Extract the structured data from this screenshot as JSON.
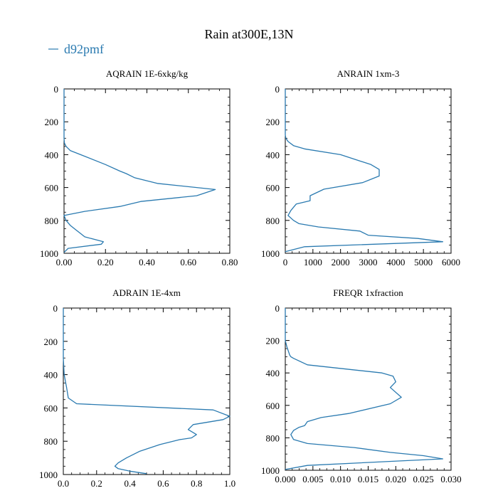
{
  "title": "Rain at300E,13N",
  "legend": {
    "label": "d92pmf",
    "color": "#2a7ab0"
  },
  "chart_data": [
    {
      "type": "line",
      "title": "AQRAIN  1E-6xkg/kg",
      "xlim": [
        0,
        0.8
      ],
      "ylim": [
        1000,
        0
      ],
      "xticks": [
        0,
        0.2,
        0.4,
        0.6,
        0.8
      ],
      "xtick_labels": [
        "0.00",
        "0.20",
        "0.40",
        "0.60",
        "0.80"
      ],
      "yticks": [
        0,
        200,
        400,
        600,
        800,
        1000
      ],
      "ytick_labels": [
        "0",
        "200",
        "400",
        "600",
        "800",
        "1000"
      ],
      "series": [
        {
          "name": "d92pmf",
          "x": [
            0,
            0,
            0,
            0,
            0,
            0.002,
            0.01,
            0.03,
            0.08,
            0.2,
            0.27,
            0.3,
            0.34,
            0.45,
            0.73,
            0.64,
            0.37,
            0.27,
            0.1,
            0,
            0.01,
            0.03,
            0.06,
            0.08,
            0.1,
            0.19,
            0.18,
            0.02,
            0
          ],
          "y": [
            0,
            100,
            200,
            250,
            300,
            330,
            350,
            375,
            400,
            460,
            500,
            515,
            540,
            575,
            612,
            650,
            685,
            715,
            745,
            770,
            800,
            830,
            860,
            880,
            900,
            930,
            945,
            970,
            995
          ]
        }
      ]
    },
    {
      "type": "line",
      "title": "ANRAIN  1xm-3",
      "xlim": [
        0,
        6000
      ],
      "ylim": [
        1000,
        0
      ],
      "xticks": [
        0,
        1000,
        2000,
        3000,
        4000,
        5000,
        6000
      ],
      "xtick_labels": [
        "0",
        "1000",
        "2000",
        "3000",
        "4000",
        "5000",
        "6000"
      ],
      "yticks": [
        0,
        200,
        400,
        600,
        800,
        1000
      ],
      "ytick_labels": [
        "0",
        "200",
        "400",
        "600",
        "800",
        "1000"
      ],
      "series": [
        {
          "name": "d92pmf",
          "x": [
            0,
            0,
            0,
            0,
            20,
            100,
            300,
            700,
            2000,
            3100,
            3400,
            3400,
            2800,
            1400,
            900,
            900,
            400,
            300,
            200,
            100,
            300,
            500,
            1200,
            2700,
            3000,
            4800,
            5700,
            700,
            0
          ],
          "y": [
            0,
            100,
            200,
            280,
            300,
            320,
            345,
            365,
            400,
            460,
            490,
            530,
            570,
            610,
            650,
            680,
            700,
            720,
            740,
            770,
            800,
            820,
            840,
            865,
            890,
            910,
            930,
            960,
            990
          ]
        }
      ]
    },
    {
      "type": "line",
      "title": "ADRAIN  1E-4xm",
      "xlim": [
        0,
        1.0
      ],
      "ylim": [
        1000,
        0
      ],
      "xticks": [
        0,
        0.2,
        0.4,
        0.6,
        0.8,
        1.0
      ],
      "xtick_labels": [
        "0.0",
        "0.2",
        "0.4",
        "0.6",
        "0.8",
        "1.0"
      ],
      "yticks": [
        0,
        200,
        400,
        600,
        800,
        1000
      ],
      "ytick_labels": [
        "0",
        "200",
        "400",
        "600",
        "800",
        "1000"
      ],
      "series": [
        {
          "name": "d92pmf",
          "x": [
            0,
            0,
            0,
            0,
            0.005,
            0.02,
            0.03,
            0.08,
            0.9,
            1.0,
            0.96,
            0.78,
            0.75,
            0.8,
            0.77,
            0.7,
            0.58,
            0.46,
            0.38,
            0.33,
            0.31,
            0.33,
            0.4,
            0.5
          ],
          "y": [
            0,
            100,
            200,
            300,
            400,
            480,
            540,
            575,
            612,
            650,
            670,
            700,
            730,
            760,
            780,
            790,
            820,
            860,
            900,
            930,
            950,
            965,
            980,
            995
          ]
        }
      ]
    },
    {
      "type": "line",
      "title": "FREQR  1xfraction",
      "xlim": [
        0,
        0.03
      ],
      "ylim": [
        1000,
        0
      ],
      "xticks": [
        0,
        0.005,
        0.01,
        0.015,
        0.02,
        0.025,
        0.03
      ],
      "xtick_labels": [
        "0.000",
        "0.005",
        "0.010",
        "0.015",
        "0.020",
        "0.025",
        "0.030"
      ],
      "yticks": [
        0,
        200,
        400,
        600,
        800,
        1000
      ],
      "ytick_labels": [
        "0",
        "200",
        "400",
        "600",
        "800",
        "1000"
      ],
      "series": [
        {
          "name": "d92pmf",
          "x": [
            0,
            0,
            0,
            0.0003,
            0.0005,
            0.0008,
            0.001,
            0.0015,
            0.004,
            0.0175,
            0.0195,
            0.02,
            0.019,
            0.021,
            0.019,
            0.0115,
            0.0065,
            0.004,
            0.0035,
            0.0025,
            0.0015,
            0.001,
            0.0015,
            0.004,
            0.0125,
            0.019,
            0.025,
            0.0285,
            0.004,
            0
          ],
          "y": [
            0,
            100,
            200,
            240,
            260,
            290,
            300,
            310,
            350,
            400,
            420,
            455,
            490,
            550,
            590,
            650,
            675,
            700,
            725,
            735,
            755,
            780,
            810,
            835,
            860,
            890,
            910,
            930,
            970,
            995
          ]
        }
      ]
    }
  ]
}
